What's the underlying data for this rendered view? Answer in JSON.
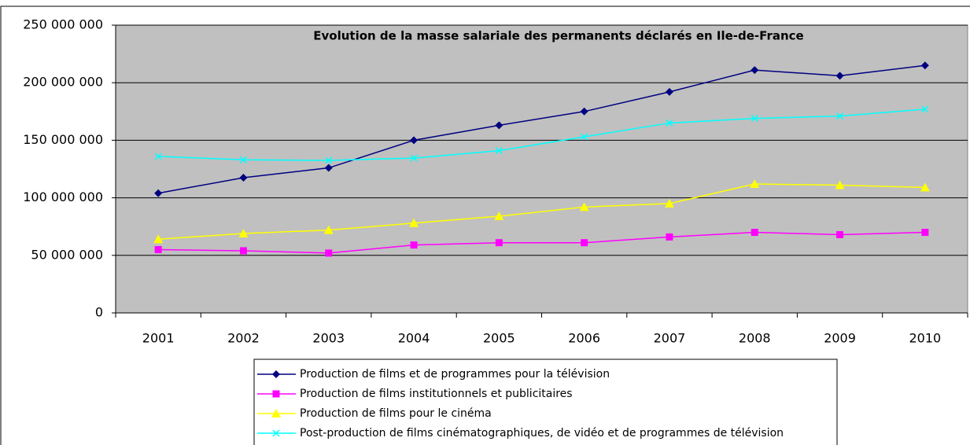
{
  "chart_data": {
    "type": "line",
    "title": "Evolution de la masse salariale des permanents déclarés en Ile-de-France",
    "categories": [
      "2001",
      "2002",
      "2003",
      "2004",
      "2005",
      "2006",
      "2007",
      "2008",
      "2009",
      "2010"
    ],
    "series": [
      {
        "name": "Production de films et de programmes pour la télévision",
        "color": "#000080",
        "marker": "diamond",
        "values": [
          104000000,
          117500000,
          126000000,
          150000000,
          163000000,
          175000000,
          192000000,
          211000000,
          206000000,
          215000000
        ]
      },
      {
        "name": "Production de films institutionnels et publicitaires",
        "color": "#ff00ff",
        "marker": "square",
        "values": [
          55000000,
          54000000,
          52000000,
          59000000,
          61000000,
          61000000,
          66000000,
          70000000,
          68000000,
          70000000
        ]
      },
      {
        "name": "Production de films pour le cinéma",
        "color": "#ffff00",
        "marker": "triangle",
        "values": [
          64000000,
          69000000,
          72000000,
          78000000,
          84000000,
          92000000,
          95000000,
          112000000,
          111000000,
          109000000
        ]
      },
      {
        "name": "Post-production de films cinématographiques, de vidéo et de programmes de télévision",
        "color": "#00ffff",
        "marker": "x",
        "values": [
          136000000,
          133000000,
          132500000,
          134500000,
          141000000,
          153000000,
          165000000,
          169000000,
          171000000,
          177000000
        ]
      }
    ],
    "ylim": [
      0,
      250000000
    ],
    "yticks": [
      0,
      {
        "value": 50000000,
        "label": "50 000 000"
      },
      {
        "value": 100000000,
        "label": "100 000 000"
      },
      {
        "value": 150000000,
        "label": "150 000 000"
      },
      {
        "value": 200000000,
        "label": "200 000 000"
      },
      {
        "value": 250000000,
        "label": "250 000 000"
      }
    ],
    "grid": true,
    "legend": "bottom"
  }
}
